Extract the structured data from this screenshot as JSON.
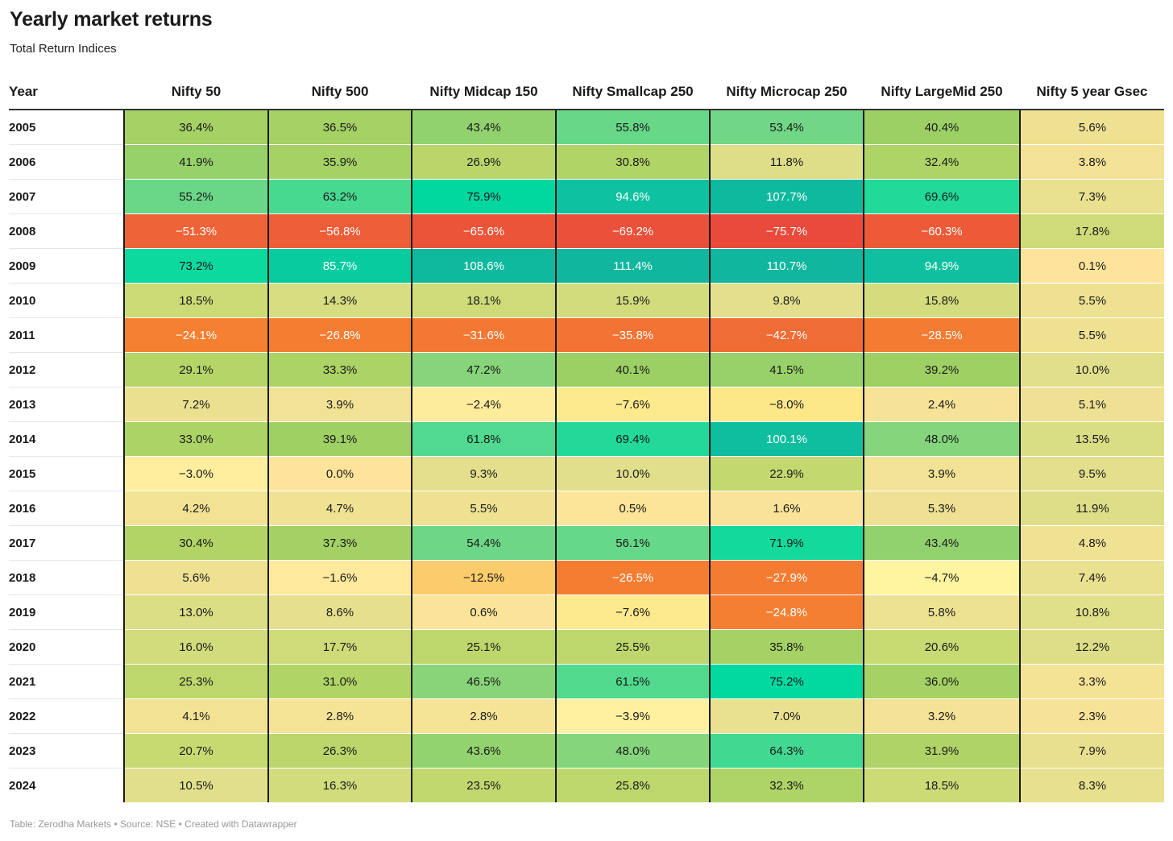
{
  "title": "Yearly market returns",
  "subtitle": "Total Return Indices",
  "footer": "Table: Zerodha Markets • Source: NSE • Created with Datawrapper",
  "chart_data": {
    "type": "table",
    "title": "Yearly market returns",
    "subtitle": "Total Return Indices",
    "row_header": "Year",
    "columns": [
      "Nifty 50",
      "Nifty 500",
      "Nifty Midcap 150",
      "Nifty Smallcap 250",
      "Nifty Microcap 250",
      "Nifty LargeMid 250",
      "Nifty 5 year Gsec"
    ],
    "rows": [
      {
        "year": "2005",
        "cells": [
          "36.4%",
          "36.5%",
          "43.4%",
          "55.8%",
          "53.4%",
          "40.4%",
          "5.6%"
        ],
        "values": [
          36.4,
          36.5,
          43.4,
          55.8,
          53.4,
          40.4,
          5.6
        ]
      },
      {
        "year": "2006",
        "cells": [
          "41.9%",
          "35.9%",
          "26.9%",
          "30.8%",
          "11.8%",
          "32.4%",
          "3.8%"
        ],
        "values": [
          41.9,
          35.9,
          26.9,
          30.8,
          11.8,
          32.4,
          3.8
        ]
      },
      {
        "year": "2007",
        "cells": [
          "55.2%",
          "63.2%",
          "75.9%",
          "94.6%",
          "107.7%",
          "69.6%",
          "7.3%"
        ],
        "values": [
          55.2,
          63.2,
          75.9,
          94.6,
          107.7,
          69.6,
          7.3
        ]
      },
      {
        "year": "2008",
        "cells": [
          "−51.3%",
          "−56.8%",
          "−65.6%",
          "−69.2%",
          "−75.7%",
          "−60.3%",
          "17.8%"
        ],
        "values": [
          -51.3,
          -56.8,
          -65.6,
          -69.2,
          -75.7,
          -60.3,
          17.8
        ]
      },
      {
        "year": "2009",
        "cells": [
          "73.2%",
          "85.7%",
          "108.6%",
          "111.4%",
          "110.7%",
          "94.9%",
          "0.1%"
        ],
        "values": [
          73.2,
          85.7,
          108.6,
          111.4,
          110.7,
          94.9,
          0.1
        ]
      },
      {
        "year": "2010",
        "cells": [
          "18.5%",
          "14.3%",
          "18.1%",
          "15.9%",
          "9.8%",
          "15.8%",
          "5.5%"
        ],
        "values": [
          18.5,
          14.3,
          18.1,
          15.9,
          9.8,
          15.8,
          5.5
        ]
      },
      {
        "year": "2011",
        "cells": [
          "−24.1%",
          "−26.8%",
          "−31.6%",
          "−35.8%",
          "−42.7%",
          "−28.5%",
          "5.5%"
        ],
        "values": [
          -24.1,
          -26.8,
          -31.6,
          -35.8,
          -42.7,
          -28.5,
          5.5
        ]
      },
      {
        "year": "2012",
        "cells": [
          "29.1%",
          "33.3%",
          "47.2%",
          "40.1%",
          "41.5%",
          "39.2%",
          "10.0%"
        ],
        "values": [
          29.1,
          33.3,
          47.2,
          40.1,
          41.5,
          39.2,
          10.0
        ]
      },
      {
        "year": "2013",
        "cells": [
          "7.2%",
          "3.9%",
          "−2.4%",
          "−7.6%",
          "−8.0%",
          "2.4%",
          "5.1%"
        ],
        "values": [
          7.2,
          3.9,
          -2.4,
          -7.6,
          -8.0,
          2.4,
          5.1
        ]
      },
      {
        "year": "2014",
        "cells": [
          "33.0%",
          "39.1%",
          "61.8%",
          "69.4%",
          "100.1%",
          "48.0%",
          "13.5%"
        ],
        "values": [
          33.0,
          39.1,
          61.8,
          69.4,
          100.1,
          48.0,
          13.5
        ]
      },
      {
        "year": "2015",
        "cells": [
          "−3.0%",
          "0.0%",
          "9.3%",
          "10.0%",
          "22.9%",
          "3.9%",
          "9.5%"
        ],
        "values": [
          -3.0,
          0.0,
          9.3,
          10.0,
          22.9,
          3.9,
          9.5
        ]
      },
      {
        "year": "2016",
        "cells": [
          "4.2%",
          "4.7%",
          "5.5%",
          "0.5%",
          "1.6%",
          "5.3%",
          "11.9%"
        ],
        "values": [
          4.2,
          4.7,
          5.5,
          0.5,
          1.6,
          5.3,
          11.9
        ]
      },
      {
        "year": "2017",
        "cells": [
          "30.4%",
          "37.3%",
          "54.4%",
          "56.1%",
          "71.9%",
          "43.4%",
          "4.8%"
        ],
        "values": [
          30.4,
          37.3,
          54.4,
          56.1,
          71.9,
          43.4,
          4.8
        ]
      },
      {
        "year": "2018",
        "cells": [
          "5.6%",
          "−1.6%",
          "−12.5%",
          "−26.5%",
          "−27.9%",
          "−4.7%",
          "7.4%"
        ],
        "values": [
          5.6,
          -1.6,
          -12.5,
          -26.5,
          -27.9,
          -4.7,
          7.4
        ]
      },
      {
        "year": "2019",
        "cells": [
          "13.0%",
          "8.6%",
          "0.6%",
          "−7.6%",
          "−24.8%",
          "5.8%",
          "10.8%"
        ],
        "values": [
          13.0,
          8.6,
          0.6,
          -7.6,
          -24.8,
          5.8,
          10.8
        ]
      },
      {
        "year": "2020",
        "cells": [
          "16.0%",
          "17.7%",
          "25.1%",
          "25.5%",
          "35.8%",
          "20.6%",
          "12.2%"
        ],
        "values": [
          16.0,
          17.7,
          25.1,
          25.5,
          35.8,
          20.6,
          12.2
        ]
      },
      {
        "year": "2021",
        "cells": [
          "25.3%",
          "31.0%",
          "46.5%",
          "61.5%",
          "75.2%",
          "36.0%",
          "3.3%"
        ],
        "values": [
          25.3,
          31.0,
          46.5,
          61.5,
          75.2,
          36.0,
          3.3
        ]
      },
      {
        "year": "2022",
        "cells": [
          "4.1%",
          "2.8%",
          "2.8%",
          "−3.9%",
          "7.0%",
          "3.2%",
          "2.3%"
        ],
        "values": [
          4.1,
          2.8,
          2.8,
          -3.9,
          7.0,
          3.2,
          2.3
        ]
      },
      {
        "year": "2023",
        "cells": [
          "20.7%",
          "26.3%",
          "43.6%",
          "48.0%",
          "64.3%",
          "31.9%",
          "7.9%"
        ],
        "values": [
          20.7,
          26.3,
          43.6,
          48.0,
          64.3,
          31.9,
          7.9
        ]
      },
      {
        "year": "2024",
        "cells": [
          "10.5%",
          "16.3%",
          "23.5%",
          "25.8%",
          "32.3%",
          "18.5%",
          "8.3%"
        ],
        "values": [
          10.5,
          16.3,
          23.5,
          25.8,
          32.3,
          18.5,
          8.3
        ]
      }
    ],
    "color_scale": {
      "type": "diverging heatmap",
      "stops": [
        {
          "value": -80,
          "color": "#e8453c"
        },
        {
          "value": -22,
          "color": "#f58231"
        },
        {
          "value": -10,
          "color": "#fbe07a"
        },
        {
          "value": -5,
          "color": "#fff5a0"
        },
        {
          "value": 0,
          "color": "#fde49a"
        },
        {
          "value": 10,
          "color": "#e2df8c"
        },
        {
          "value": 20,
          "color": "#c9da73"
        },
        {
          "value": 30,
          "color": "#b3d466"
        },
        {
          "value": 40,
          "color": "#9dd064"
        },
        {
          "value": 50,
          "color": "#7ed682"
        },
        {
          "value": 62,
          "color": "#4fd98f"
        },
        {
          "value": 75,
          "color": "#00d9a0"
        },
        {
          "value": 95,
          "color": "#0ec0a0"
        },
        {
          "value": 115,
          "color": "#10b59d"
        }
      ],
      "text_dark": "#1a1a1a",
      "text_light": "#ffffff"
    }
  }
}
